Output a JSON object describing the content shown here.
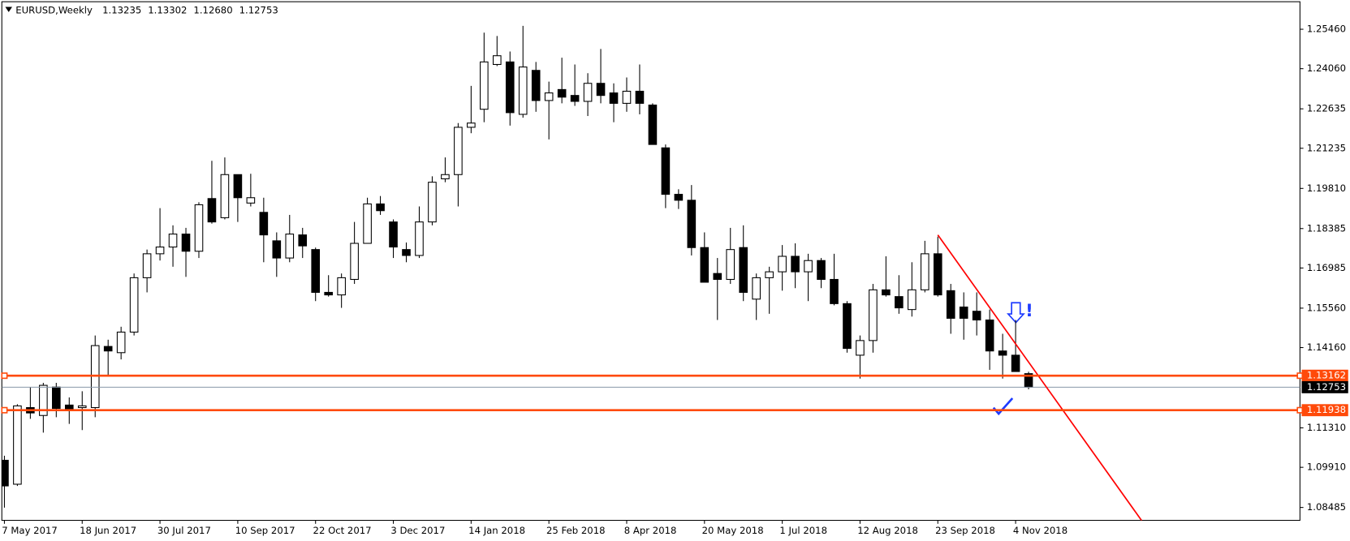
{
  "chart_data": {
    "type": "candlestick",
    "title": "EURUSD,Weekly",
    "header_ohlc": [
      "1.13235",
      "1.13302",
      "1.12680",
      "1.12753"
    ],
    "categories": [
      "7 May 2017",
      null,
      null,
      null,
      null,
      null,
      "18 Jun 2017",
      null,
      null,
      null,
      null,
      null,
      "30 Jul 2017",
      null,
      null,
      null,
      null,
      null,
      "10 Sep 2017",
      null,
      null,
      null,
      null,
      null,
      "22 Oct 2017",
      null,
      null,
      null,
      null,
      null,
      "3 Dec 2017",
      null,
      null,
      null,
      null,
      null,
      "14 Jan 2018",
      null,
      null,
      null,
      null,
      null,
      "25 Feb 2018",
      null,
      null,
      null,
      null,
      null,
      "8 Apr 2018",
      null,
      null,
      null,
      null,
      null,
      "20 May 2018",
      null,
      null,
      null,
      null,
      null,
      "1 Jul 2018",
      null,
      null,
      null,
      null,
      null,
      "12 Aug 2018",
      null,
      null,
      null,
      null,
      null,
      "23 Sep 2018",
      null,
      null,
      null,
      null,
      null,
      "4 Nov 2018",
      null
    ],
    "open": [
      1.1016,
      1.0931,
      1.1203,
      1.1175,
      1.1276,
      1.1212,
      1.1203,
      1.1203,
      1.142,
      1.1398,
      1.1471,
      1.1664,
      1.1749,
      1.1773,
      1.1819,
      1.1758,
      1.1945,
      1.1877,
      1.203,
      1.1929,
      1.1896,
      1.1795,
      1.1734,
      1.1816,
      1.1764,
      1.1612,
      1.1603,
      1.1658,
      1.1786,
      1.1926,
      1.1862,
      1.1764,
      1.1743,
      1.1862,
      1.2015,
      1.203,
      1.2198,
      1.2262,
      1.2421,
      1.243,
      1.2244,
      1.24,
      1.2293,
      1.2332,
      1.2311,
      1.229,
      1.2354,
      1.232,
      1.2283,
      1.2326,
      1.2277,
      1.2125,
      1.196,
      1.1939,
      1.1771,
      1.1679,
      1.1658,
      1.1771,
      1.1588,
      1.1664,
      1.1685,
      1.174,
      1.1685,
      1.1725,
      1.1658,
      1.1572,
      1.1389,
      1.1441,
      1.1621,
      1.1597,
      1.1551,
      1.1621,
      1.1749,
      1.1618,
      1.156,
      1.1545,
      1.1514,
      1.1404,
      1.1389,
      1.13235
    ],
    "high": [
      1.1032,
      1.1215,
      1.1276,
      1.1291,
      1.1291,
      1.1239,
      1.1261,
      1.1459,
      1.1444,
      1.149,
      1.1679,
      1.1764,
      1.1911,
      1.185,
      1.1841,
      1.1932,
      1.2079,
      1.2091,
      1.203,
      1.2033,
      1.1948,
      1.1825,
      1.1887,
      1.1841,
      1.1771,
      1.1673,
      1.1679,
      1.1862,
      1.1948,
      1.1954,
      1.1871,
      1.1789,
      1.1917,
      1.2024,
      1.2091,
      1.2213,
      1.2345,
      1.2534,
      1.2522,
      1.2467,
      1.2558,
      1.243,
      1.236,
      1.2445,
      1.2421,
      1.239,
      1.2476,
      1.2354,
      1.2375,
      1.2421,
      1.2283,
      1.2137,
      1.1978,
      1.1993,
      1.1825,
      1.1734,
      1.1841,
      1.185,
      1.1679,
      1.1703,
      1.178,
      1.1786,
      1.1749,
      1.1734,
      1.1749,
      1.1581,
      1.1459,
      1.1642,
      1.174,
      1.1673,
      1.1719,
      1.1795,
      1.181,
      1.1642,
      1.1612,
      1.1612,
      1.1551,
      1.1465,
      1.1514,
      1.13302
    ],
    "low": [
      1.0848,
      1.0925,
      1.1163,
      1.1114,
      1.1169,
      1.1145,
      1.1123,
      1.1169,
      1.1316,
      1.1374,
      1.1459,
      1.1612,
      1.1725,
      1.1703,
      1.1667,
      1.1734,
      1.1856,
      1.1871,
      1.1862,
      1.1917,
      1.1719,
      1.1667,
      1.1719,
      1.1734,
      1.1581,
      1.1597,
      1.1557,
      1.1642,
      1.1786,
      1.1887,
      1.1734,
      1.1719,
      1.1734,
      1.185,
      1.2003,
      1.1917,
      1.2177,
      1.2216,
      1.2415,
      1.2204,
      1.2232,
      1.2253,
      1.2155,
      1.2283,
      1.2274,
      1.2238,
      1.2283,
      1.2216,
      1.2253,
      1.2244,
      1.2137,
      1.1911,
      1.1908,
      1.1743,
      1.1648,
      1.1514,
      1.1642,
      1.1581,
      1.1514,
      1.1536,
      1.1618,
      1.1627,
      1.1581,
      1.1627,
      1.1566,
      1.1398,
      1.1306,
      1.1398,
      1.1597,
      1.1536,
      1.1526,
      1.1612,
      1.1597,
      1.1465,
      1.1444,
      1.1459,
      1.1337,
      1.1306,
      1.1331,
      1.1268
    ],
    "close": [
      1.0925,
      1.1209,
      1.1184,
      1.1282,
      1.12,
      1.1197,
      1.1209,
      1.1423,
      1.1404,
      1.1471,
      1.1664,
      1.1749,
      1.1773,
      1.1819,
      1.1758,
      1.1923,
      1.1862,
      1.203,
      1.1948,
      1.1948,
      1.1816,
      1.1734,
      1.1819,
      1.1777,
      1.1612,
      1.1603,
      1.1664,
      1.1786,
      1.1926,
      1.1902,
      1.1773,
      1.1743,
      1.1862,
      1.2003,
      1.203,
      1.2198,
      1.2213,
      1.243,
      1.2452,
      1.225,
      1.2412,
      1.2293,
      1.232,
      1.2305,
      1.229,
      1.2354,
      1.2311,
      1.2283,
      1.2326,
      1.2283,
      1.2137,
      1.196,
      1.1939,
      1.1771,
      1.1648,
      1.1658,
      1.1764,
      1.1612,
      1.1664,
      1.1685,
      1.174,
      1.1685,
      1.1725,
      1.1658,
      1.1572,
      1.1413,
      1.1441,
      1.1621,
      1.1603,
      1.1557,
      1.1621,
      1.1749,
      1.1603,
      1.152,
      1.152,
      1.1514,
      1.1404,
      1.1389,
      1.1331,
      1.12753
    ],
    "ylim": [
      1.08027,
      1.26437
    ],
    "yticks": [
      {
        "value": 1.2546,
        "label": "1.25460"
      },
      {
        "value": 1.2406,
        "label": "1.24060"
      },
      1.22635,
      1.21235,
      {
        "value": 1.1981,
        "label": "1.19810"
      },
      1.18385,
      1.16985,
      {
        "value": 1.1556,
        "label": "1.15560"
      },
      {
        "value": 1.1416,
        "label": "1.14160"
      },
      {
        "value": 1.1131,
        "label": "1.11310"
      },
      {
        "value": 1.0991,
        "label": "1.09910"
      },
      1.08485
    ],
    "levels": [
      1.13162,
      1.11938
    ],
    "level_color": "#ff4a0a",
    "last_price": 1.12753,
    "trendline": {
      "x": [
        72,
        88
      ],
      "y": [
        1.1816,
        1.0784
      ],
      "color": "#ff0000"
    },
    "annotation": "!"
  }
}
